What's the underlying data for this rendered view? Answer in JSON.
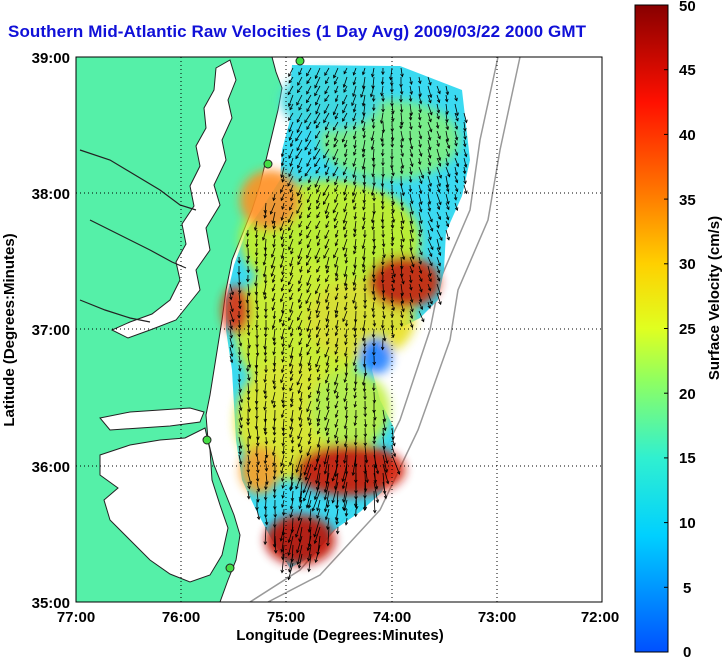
{
  "title": "Southern Mid-Atlantic Raw Velocities (1 Day Avg) 2009/03/22 2000 GMT",
  "map": {
    "xlabel": "Longitude (Degrees:Minutes)",
    "ylabel": "Latitude (Degrees:Minutes)",
    "lon_range": [
      -77,
      -72
    ],
    "lat_range": [
      35,
      39
    ],
    "lon_ticks": [
      "77:00",
      "76:00",
      "75:00",
      "74:00",
      "73:00",
      "72:00"
    ],
    "lat_ticks": [
      "39:00",
      "38:00",
      "37:00",
      "36:00",
      "35:00"
    ],
    "grid": "dotted",
    "land_color": "#55f0a8",
    "coastline_color": "#000000",
    "station_color": "#44dd44"
  },
  "colorbar": {
    "label": "Surface Velocity (cm/s)",
    "ticks": [
      "50",
      "45",
      "40",
      "35",
      "30",
      "25",
      "20",
      "15",
      "10",
      "5",
      "0"
    ],
    "min": 0,
    "max": 50,
    "colormap": "jet"
  }
}
